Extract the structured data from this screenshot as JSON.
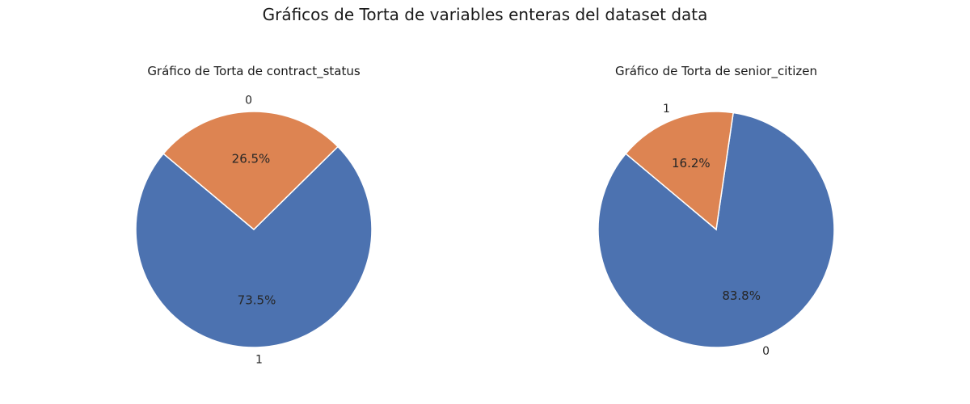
{
  "figure": {
    "title": "Gráficos de Torta de variables enteras del dataset data"
  },
  "colors": {
    "blue": "#4c72b0",
    "orange": "#dd8452"
  },
  "chart_data": [
    {
      "type": "pie",
      "title": "Gráfico de Torta de contract_status",
      "labels": [
        "1",
        "0"
      ],
      "values": [
        73.5,
        26.5
      ],
      "percent_labels": [
        "73.5%",
        "26.5%"
      ],
      "colors": [
        "#4c72b0",
        "#dd8452"
      ],
      "start_angle_deg": 140
    },
    {
      "type": "pie",
      "title": "Gráfico de Torta de senior_citizen",
      "labels": [
        "0",
        "1"
      ],
      "values": [
        83.8,
        16.2
      ],
      "percent_labels": [
        "83.8%",
        "16.2%"
      ],
      "colors": [
        "#4c72b0",
        "#dd8452"
      ],
      "start_angle_deg": 140
    }
  ]
}
